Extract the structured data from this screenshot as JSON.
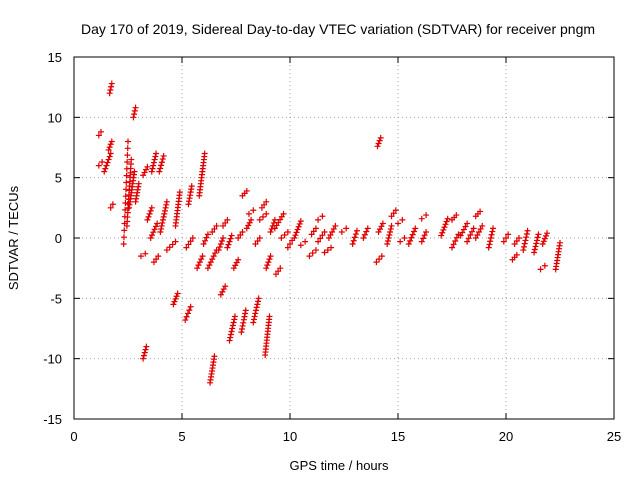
{
  "chart_data": {
    "type": "scatter",
    "title": "Day 170 of 2019, Sidereal Day-to-day VTEC variation (SDTVAR) for receiver pngm",
    "xlabel": "GPS time / hours",
    "ylabel": "SDTVAR / TECUs",
    "xlim": [
      0,
      25
    ],
    "ylim": [
      -15,
      15
    ],
    "grid": true,
    "marker": "+",
    "color": "#e00000",
    "xticks": [
      0,
      5,
      10,
      15,
      20,
      25
    ],
    "yticks": [
      -15,
      -10,
      -5,
      0,
      5,
      10,
      15
    ],
    "segments": [
      {
        "t": [
          1.15,
          1.25
        ],
        "v": [
          8.5,
          8.8
        ]
      },
      {
        "t": [
          1.15,
          1.3
        ],
        "v": [
          6.0,
          6.3
        ]
      },
      {
        "t": [
          1.4,
          1.7
        ],
        "v": [
          5.5,
          7.0
        ]
      },
      {
        "t": [
          1.6,
          1.75
        ],
        "v": [
          7.3,
          8.0
        ]
      },
      {
        "t": [
          1.65,
          1.75
        ],
        "v": [
          12.0,
          12.8
        ]
      },
      {
        "t": [
          1.7,
          1.8
        ],
        "v": [
          2.5,
          2.8
        ]
      },
      {
        "t": [
          2.3,
          2.5
        ],
        "v": [
          -0.5,
          8.0
        ]
      },
      {
        "t": [
          2.45,
          2.65
        ],
        "v": [
          1.0,
          6.5
        ]
      },
      {
        "t": [
          2.55,
          2.8
        ],
        "v": [
          2.5,
          5.5
        ]
      },
      {
        "t": [
          2.75,
          2.85
        ],
        "v": [
          10.0,
          10.8
        ]
      },
      {
        "t": [
          2.85,
          3.0
        ],
        "v": [
          3.0,
          4.5
        ]
      },
      {
        "t": [
          3.1,
          3.3
        ],
        "v": [
          -1.5,
          -1.3
        ]
      },
      {
        "t": [
          3.2,
          3.35
        ],
        "v": [
          -10.0,
          -9.0
        ]
      },
      {
        "t": [
          3.2,
          3.4
        ],
        "v": [
          5.2,
          5.9
        ]
      },
      {
        "t": [
          3.4,
          3.6
        ],
        "v": [
          1.5,
          2.5
        ]
      },
      {
        "t": [
          3.6,
          3.8
        ],
        "v": [
          5.5,
          7.0
        ]
      },
      {
        "t": [
          3.55,
          3.85
        ],
        "v": [
          0.0,
          1.2
        ]
      },
      {
        "t": [
          3.7,
          3.9
        ],
        "v": [
          -2.0,
          -1.5
        ]
      },
      {
        "t": [
          3.95,
          4.15
        ],
        "v": [
          5.5,
          6.8
        ]
      },
      {
        "t": [
          4.0,
          4.3
        ],
        "v": [
          0.5,
          3.0
        ]
      },
      {
        "t": [
          4.3,
          4.7
        ],
        "v": [
          -1.0,
          -0.3
        ]
      },
      {
        "t": [
          4.6,
          4.8
        ],
        "v": [
          -5.5,
          -4.6
        ]
      },
      {
        "t": [
          4.7,
          4.9
        ],
        "v": [
          1.0,
          3.8
        ]
      },
      {
        "t": [
          5.15,
          5.4
        ],
        "v": [
          -6.8,
          -5.7
        ]
      },
      {
        "t": [
          5.3,
          5.45
        ],
        "v": [
          2.8,
          4.3
        ]
      },
      {
        "t": [
          5.2,
          5.5
        ],
        "v": [
          -0.8,
          0.0
        ]
      },
      {
        "t": [
          5.7,
          5.95
        ],
        "v": [
          -2.5,
          -1.5
        ]
      },
      {
        "t": [
          5.8,
          6.05
        ],
        "v": [
          3.5,
          7.0
        ]
      },
      {
        "t": [
          6.0,
          6.2
        ],
        "v": [
          -0.5,
          0.3
        ]
      },
      {
        "t": [
          6.3,
          6.5
        ],
        "v": [
          -12.0,
          -9.8
        ]
      },
      {
        "t": [
          6.2,
          6.6
        ],
        "v": [
          -2.5,
          -1.0
        ]
      },
      {
        "t": [
          6.4,
          6.6
        ],
        "v": [
          0.5,
          1.0
        ]
      },
      {
        "t": [
          6.7,
          6.9
        ],
        "v": [
          -1.0,
          0.0
        ]
      },
      {
        "t": [
          6.8,
          7.0
        ],
        "v": [
          -4.7,
          -4.0
        ]
      },
      {
        "t": [
          6.9,
          7.1
        ],
        "v": [
          1.0,
          1.5
        ]
      },
      {
        "t": [
          7.1,
          7.3
        ],
        "v": [
          -0.8,
          0.2
        ]
      },
      {
        "t": [
          7.2,
          7.45
        ],
        "v": [
          -8.5,
          -6.5
        ]
      },
      {
        "t": [
          7.4,
          7.6
        ],
        "v": [
          -2.5,
          -1.8
        ]
      },
      {
        "t": [
          7.6,
          7.8
        ],
        "v": [
          0.0,
          0.5
        ]
      },
      {
        "t": [
          7.75,
          7.95
        ],
        "v": [
          -7.8,
          -6.0
        ]
      },
      {
        "t": [
          7.8,
          8.0
        ],
        "v": [
          3.5,
          3.9
        ]
      },
      {
        "t": [
          8.0,
          8.2
        ],
        "v": [
          0.8,
          1.5
        ]
      },
      {
        "t": [
          8.1,
          8.3
        ],
        "v": [
          2.0,
          2.3
        ]
      },
      {
        "t": [
          8.3,
          8.55
        ],
        "v": [
          -7.0,
          -5.0
        ]
      },
      {
        "t": [
          8.4,
          8.6
        ],
        "v": [
          -0.5,
          0.0
        ]
      },
      {
        "t": [
          8.7,
          8.9
        ],
        "v": [
          2.5,
          3.0
        ]
      },
      {
        "t": [
          8.6,
          8.9
        ],
        "v": [
          1.5,
          2.0
        ]
      },
      {
        "t": [
          8.85,
          9.05
        ],
        "v": [
          -9.7,
          -6.5
        ]
      },
      {
        "t": [
          8.9,
          9.1
        ],
        "v": [
          -2.5,
          -1.5
        ]
      },
      {
        "t": [
          9.1,
          9.3
        ],
        "v": [
          0.5,
          1.5
        ]
      },
      {
        "t": [
          9.35,
          9.55
        ],
        "v": [
          -3.0,
          -2.5
        ]
      },
      {
        "t": [
          9.3,
          9.7
        ],
        "v": [
          0.8,
          2.0
        ]
      },
      {
        "t": [
          9.6,
          9.9
        ],
        "v": [
          0.0,
          0.5
        ]
      },
      {
        "t": [
          9.9,
          10.1
        ],
        "v": [
          -0.8,
          -0.2
        ]
      },
      {
        "t": [
          10.2,
          10.5
        ],
        "v": [
          0.0,
          1.4
        ]
      },
      {
        "t": [
          10.5,
          10.7
        ],
        "v": [
          -0.6,
          -0.3
        ]
      },
      {
        "t": [
          10.9,
          11.2
        ],
        "v": [
          -1.5,
          -1.0
        ]
      },
      {
        "t": [
          11.0,
          11.2
        ],
        "v": [
          0.3,
          0.8
        ]
      },
      {
        "t": [
          11.3,
          11.5
        ],
        "v": [
          1.5,
          1.8
        ]
      },
      {
        "t": [
          11.3,
          11.6
        ],
        "v": [
          -0.3,
          0.5
        ]
      },
      {
        "t": [
          11.6,
          11.9
        ],
        "v": [
          -1.2,
          -0.8
        ]
      },
      {
        "t": [
          11.8,
          12.1
        ],
        "v": [
          0.0,
          1.0
        ]
      },
      {
        "t": [
          12.4,
          12.6
        ],
        "v": [
          0.5,
          0.8
        ]
      },
      {
        "t": [
          12.9,
          13.1
        ],
        "v": [
          -0.5,
          0.6
        ]
      },
      {
        "t": [
          13.4,
          13.6
        ],
        "v": [
          0.0,
          0.8
        ]
      },
      {
        "t": [
          14.05,
          14.2
        ],
        "v": [
          7.6,
          8.3
        ]
      },
      {
        "t": [
          14.0,
          14.25
        ],
        "v": [
          -2.0,
          -1.5
        ]
      },
      {
        "t": [
          14.1,
          14.3
        ],
        "v": [
          0.5,
          1.2
        ]
      },
      {
        "t": [
          14.5,
          14.7
        ],
        "v": [
          -0.5,
          1.0
        ]
      },
      {
        "t": [
          14.7,
          14.9
        ],
        "v": [
          1.8,
          2.3
        ]
      },
      {
        "t": [
          15.0,
          15.2
        ],
        "v": [
          1.2,
          1.5
        ]
      },
      {
        "t": [
          15.1,
          15.3
        ],
        "v": [
          -0.3,
          0.0
        ]
      },
      {
        "t": [
          15.5,
          15.8
        ],
        "v": [
          -0.5,
          0.8
        ]
      },
      {
        "t": [
          16.1,
          16.3
        ],
        "v": [
          -0.3,
          0.5
        ]
      },
      {
        "t": [
          16.1,
          16.3
        ],
        "v": [
          1.6,
          1.9
        ]
      },
      {
        "t": [
          17.0,
          17.3
        ],
        "v": [
          0.2,
          1.6
        ]
      },
      {
        "t": [
          17.5,
          17.7
        ],
        "v": [
          1.5,
          1.9
        ]
      },
      {
        "t": [
          17.5,
          17.8
        ],
        "v": [
          -0.8,
          0.3
        ]
      },
      {
        "t": [
          17.9,
          18.2
        ],
        "v": [
          0.2,
          1.2
        ]
      },
      {
        "t": [
          18.2,
          18.5
        ],
        "v": [
          -0.3,
          0.8
        ]
      },
      {
        "t": [
          18.6,
          18.8
        ],
        "v": [
          1.8,
          2.2
        ]
      },
      {
        "t": [
          18.6,
          18.9
        ],
        "v": [
          0.0,
          1.0
        ]
      },
      {
        "t": [
          19.2,
          19.4
        ],
        "v": [
          -0.8,
          0.8
        ]
      },
      {
        "t": [
          19.9,
          20.1
        ],
        "v": [
          -0.3,
          0.3
        ]
      },
      {
        "t": [
          20.3,
          20.5
        ],
        "v": [
          -1.8,
          -1.4
        ]
      },
      {
        "t": [
          20.4,
          20.6
        ],
        "v": [
          -0.5,
          0.0
        ]
      },
      {
        "t": [
          20.8,
          21.0
        ],
        "v": [
          -1.0,
          0.6
        ]
      },
      {
        "t": [
          21.3,
          21.5
        ],
        "v": [
          -1.2,
          0.3
        ]
      },
      {
        "t": [
          21.6,
          21.8
        ],
        "v": [
          -2.6,
          -2.3
        ]
      },
      {
        "t": [
          21.7,
          21.9
        ],
        "v": [
          -0.5,
          0.4
        ]
      },
      {
        "t": [
          22.3,
          22.5
        ],
        "v": [
          -2.6,
          -0.4
        ]
      }
    ]
  }
}
